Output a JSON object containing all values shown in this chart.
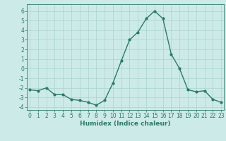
{
  "x": [
    0,
    1,
    2,
    3,
    4,
    5,
    6,
    7,
    8,
    9,
    10,
    11,
    12,
    13,
    14,
    15,
    16,
    17,
    18,
    19,
    20,
    21,
    22,
    23
  ],
  "y": [
    -2.2,
    -2.3,
    -2.0,
    -2.7,
    -2.7,
    -3.2,
    -3.3,
    -3.5,
    -3.8,
    -3.3,
    -1.5,
    0.8,
    3.0,
    3.8,
    5.2,
    6.0,
    5.2,
    1.5,
    0.0,
    -2.2,
    -2.4,
    -2.3,
    -3.2,
    -3.5
  ],
  "line_color": "#2a7a6a",
  "bg_color": "#cceae8",
  "grid_color": "#aad4d0",
  "xlabel": "Humidex (Indice chaleur)",
  "ylim": [
    -4.3,
    6.7
  ],
  "xlim": [
    -0.3,
    23.3
  ],
  "yticks": [
    -4,
    -3,
    -2,
    -1,
    0,
    1,
    2,
    3,
    4,
    5,
    6
  ],
  "xticks": [
    0,
    1,
    2,
    3,
    4,
    5,
    6,
    7,
    8,
    9,
    10,
    11,
    12,
    13,
    14,
    15,
    16,
    17,
    18,
    19,
    20,
    21,
    22,
    23
  ],
  "xlabel_fontsize": 6.5,
  "tick_fontsize": 5.5,
  "marker_size": 2.0,
  "line_width": 1.0
}
